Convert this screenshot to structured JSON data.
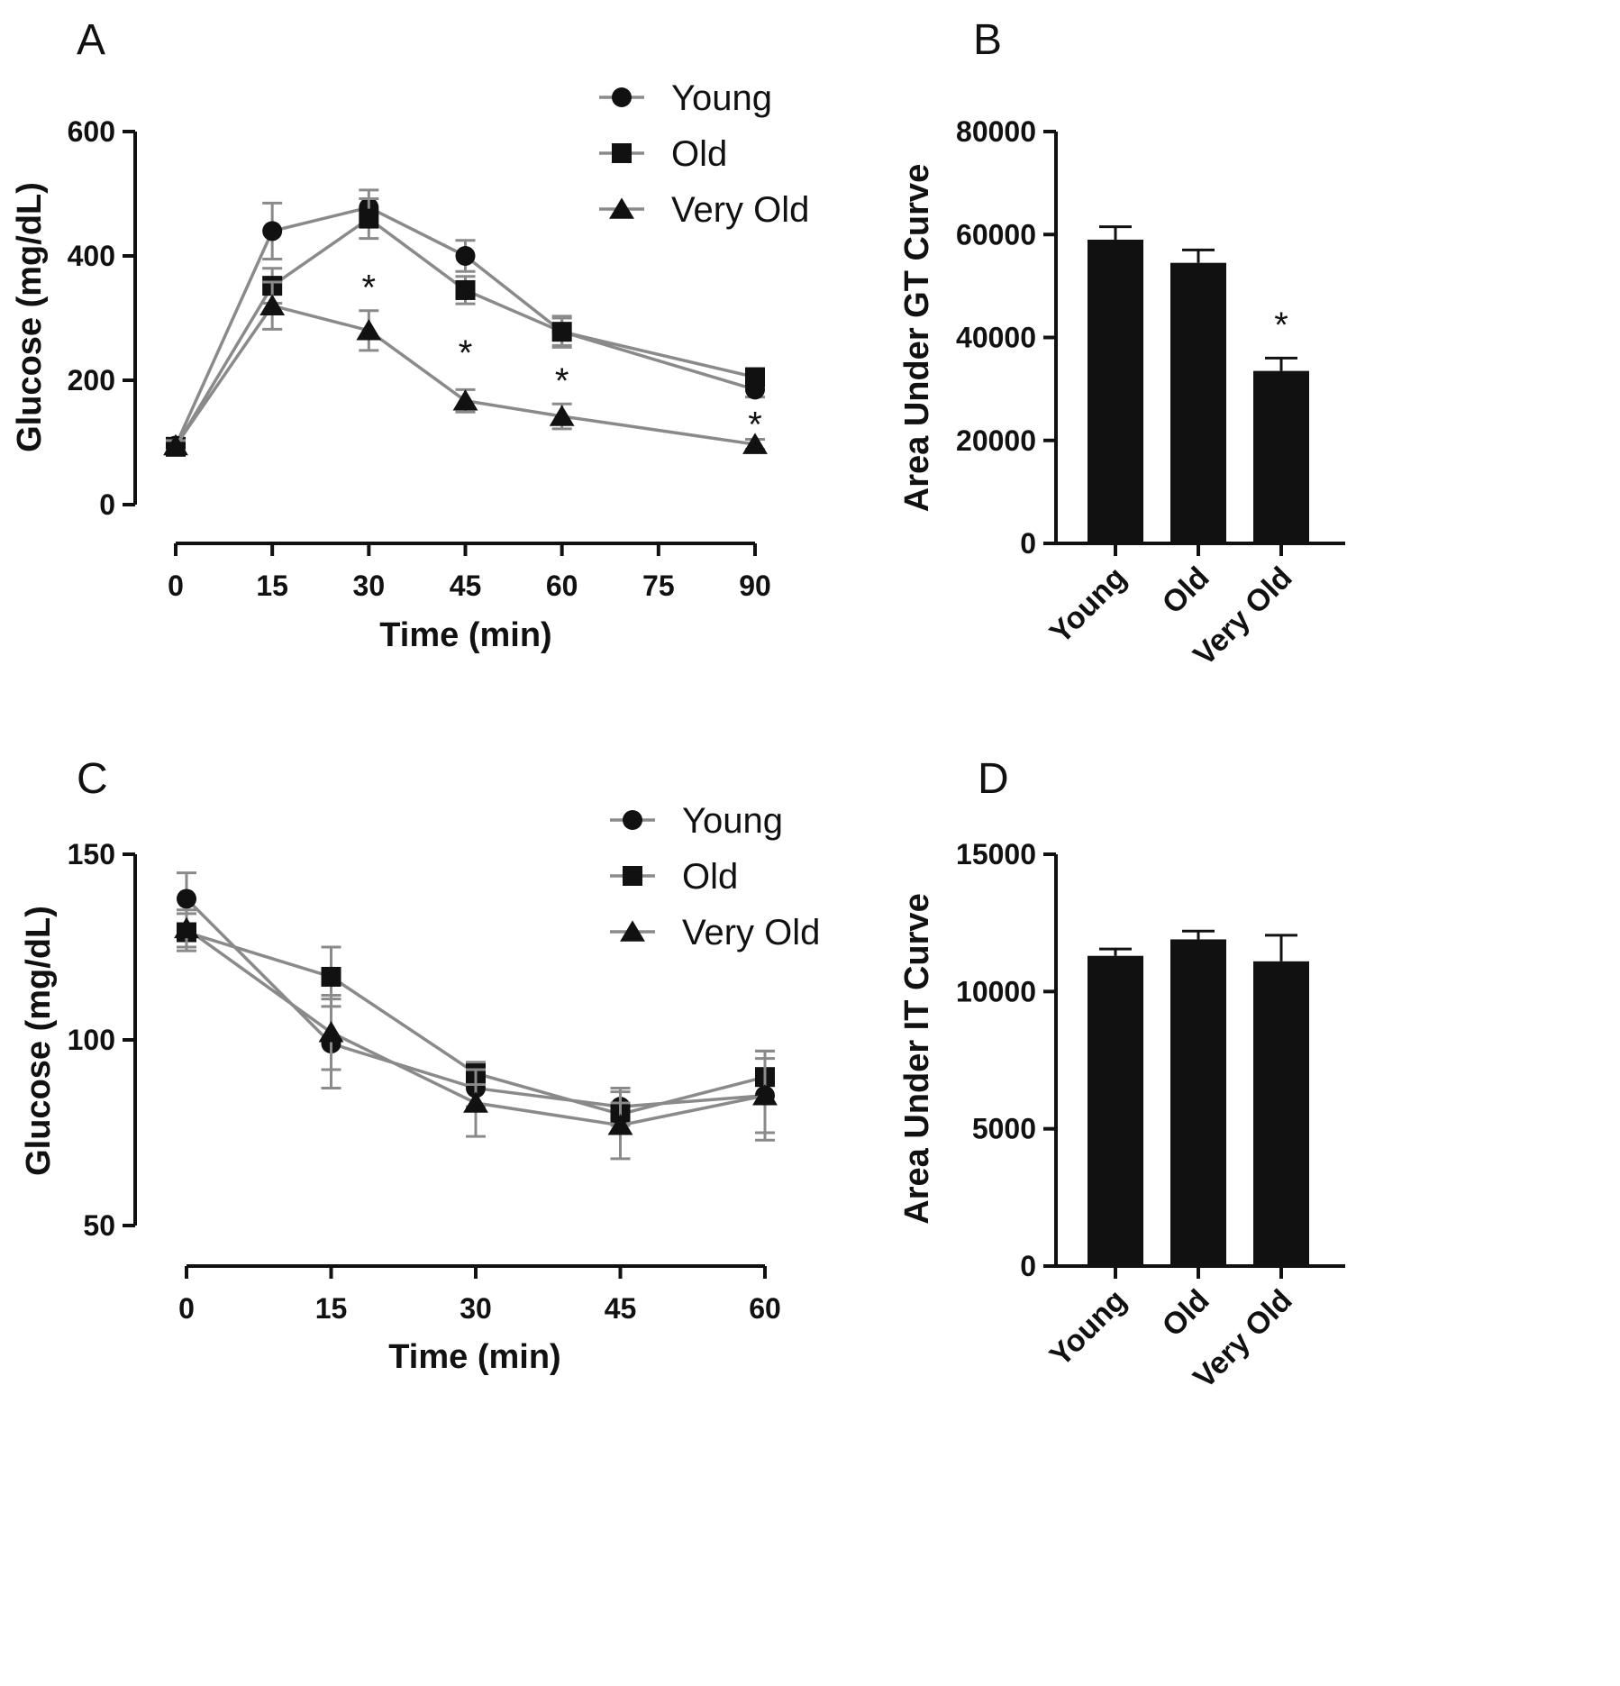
{
  "chart_data": [
    {
      "panel": "A",
      "type": "line",
      "xlabel": "Time (min)",
      "ylabel": "Glucose (mg/dL)",
      "xlim": [
        0,
        90
      ],
      "ylim": [
        0,
        600
      ],
      "xticks": [
        0,
        15,
        30,
        45,
        60,
        75,
        90
      ],
      "yticks": [
        0,
        200,
        400,
        600
      ],
      "x": [
        0,
        15,
        30,
        45,
        60,
        90
      ],
      "legend_position": "top-right",
      "series": [
        {
          "name": "Young",
          "marker": "circle",
          "values": [
            95,
            440,
            478,
            400,
            278,
            185
          ],
          "errors": [
            8,
            45,
            28,
            25,
            22,
            12
          ]
        },
        {
          "name": "Old",
          "marker": "square",
          "values": [
            93,
            352,
            460,
            345,
            278,
            205
          ],
          "errors": [
            8,
            28,
            32,
            22,
            25,
            10
          ]
        },
        {
          "name": "Very Old",
          "marker": "triangle",
          "values": [
            95,
            320,
            280,
            167,
            142,
            97
          ],
          "errors": [
            8,
            38,
            32,
            18,
            20,
            8
          ]
        }
      ],
      "annotations": [
        {
          "text": "*",
          "x": 30,
          "y": 350
        },
        {
          "text": "*",
          "x": 45,
          "y": 245
        },
        {
          "text": "*",
          "x": 60,
          "y": 200
        },
        {
          "text": "*",
          "x": 90,
          "y": 130
        }
      ]
    },
    {
      "panel": "B",
      "type": "bar",
      "categories": [
        "Young",
        "Old",
        "Very Old"
      ],
      "values": [
        59000,
        54500,
        33500
      ],
      "errors": [
        2500,
        2500,
        2500
      ],
      "ylabel": "Area Under GT Curve",
      "ylim": [
        0,
        80000
      ],
      "yticks": [
        0,
        20000,
        40000,
        60000,
        80000
      ],
      "annotations": [
        {
          "text": "*",
          "category": "Very Old",
          "y": 42500
        }
      ]
    },
    {
      "panel": "C",
      "type": "line",
      "xlabel": "Time (min)",
      "ylabel": "Glucose (mg/dL)",
      "xlim": [
        0,
        60
      ],
      "ylim": [
        50,
        150
      ],
      "xticks": [
        0,
        15,
        30,
        45,
        60
      ],
      "yticks": [
        50,
        100,
        150
      ],
      "x": [
        0,
        15,
        30,
        45,
        60
      ],
      "legend_position": "top-right",
      "series": [
        {
          "name": "Young",
          "marker": "circle",
          "values": [
            138,
            99,
            87,
            82,
            85
          ],
          "errors": [
            7,
            12,
            5,
            5,
            12
          ]
        },
        {
          "name": "Old",
          "marker": "square",
          "values": [
            129,
            117,
            91,
            80,
            90
          ],
          "errors": [
            5,
            8,
            3,
            3,
            7
          ]
        },
        {
          "name": "Very Old",
          "marker": "triangle",
          "values": [
            130,
            102,
            83,
            77,
            85
          ],
          "errors": [
            5,
            10,
            9,
            9,
            10
          ]
        }
      ]
    },
    {
      "panel": "D",
      "type": "bar",
      "categories": [
        "Young",
        "Old",
        "Very Old"
      ],
      "values": [
        11300,
        11900,
        11100
      ],
      "errors": [
        250,
        300,
        950
      ],
      "ylabel": "Area Under IT Curve",
      "ylim": [
        0,
        15000
      ],
      "yticks": [
        0,
        5000,
        10000,
        15000
      ]
    }
  ]
}
